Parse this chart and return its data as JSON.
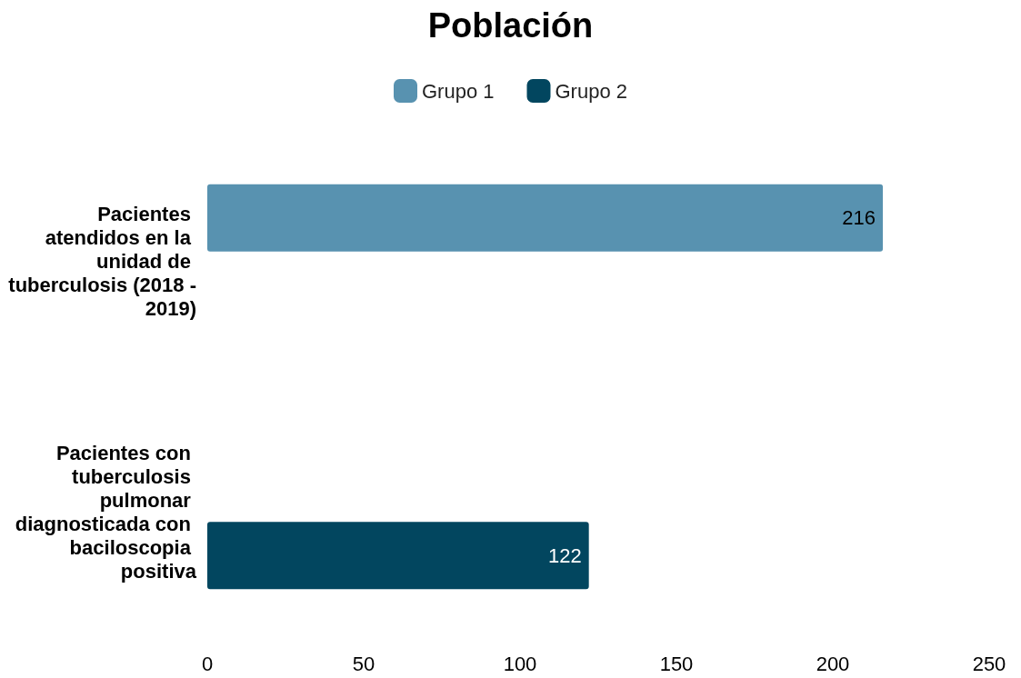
{
  "chart_data": {
    "type": "bar",
    "title": "Población",
    "orientation": "horizontal",
    "categories": [
      "Pacientes atendidos en la unidad de tuberculosis (2018 - 2019)",
      "Pacientes con tuberculosis pulmonar diagnosticada con baciloscopia positiva"
    ],
    "series": [
      {
        "name": "Grupo 1",
        "color": "#5892b0",
        "values": [
          216,
          null
        ]
      },
      {
        "name": "Grupo 2",
        "color": "#02465f",
        "values": [
          null,
          122
        ]
      }
    ],
    "xlim": [
      0,
      250
    ],
    "xticks": [
      0,
      50,
      100,
      150,
      200,
      250
    ],
    "grid": false,
    "legend": "top",
    "data_labels": true
  }
}
